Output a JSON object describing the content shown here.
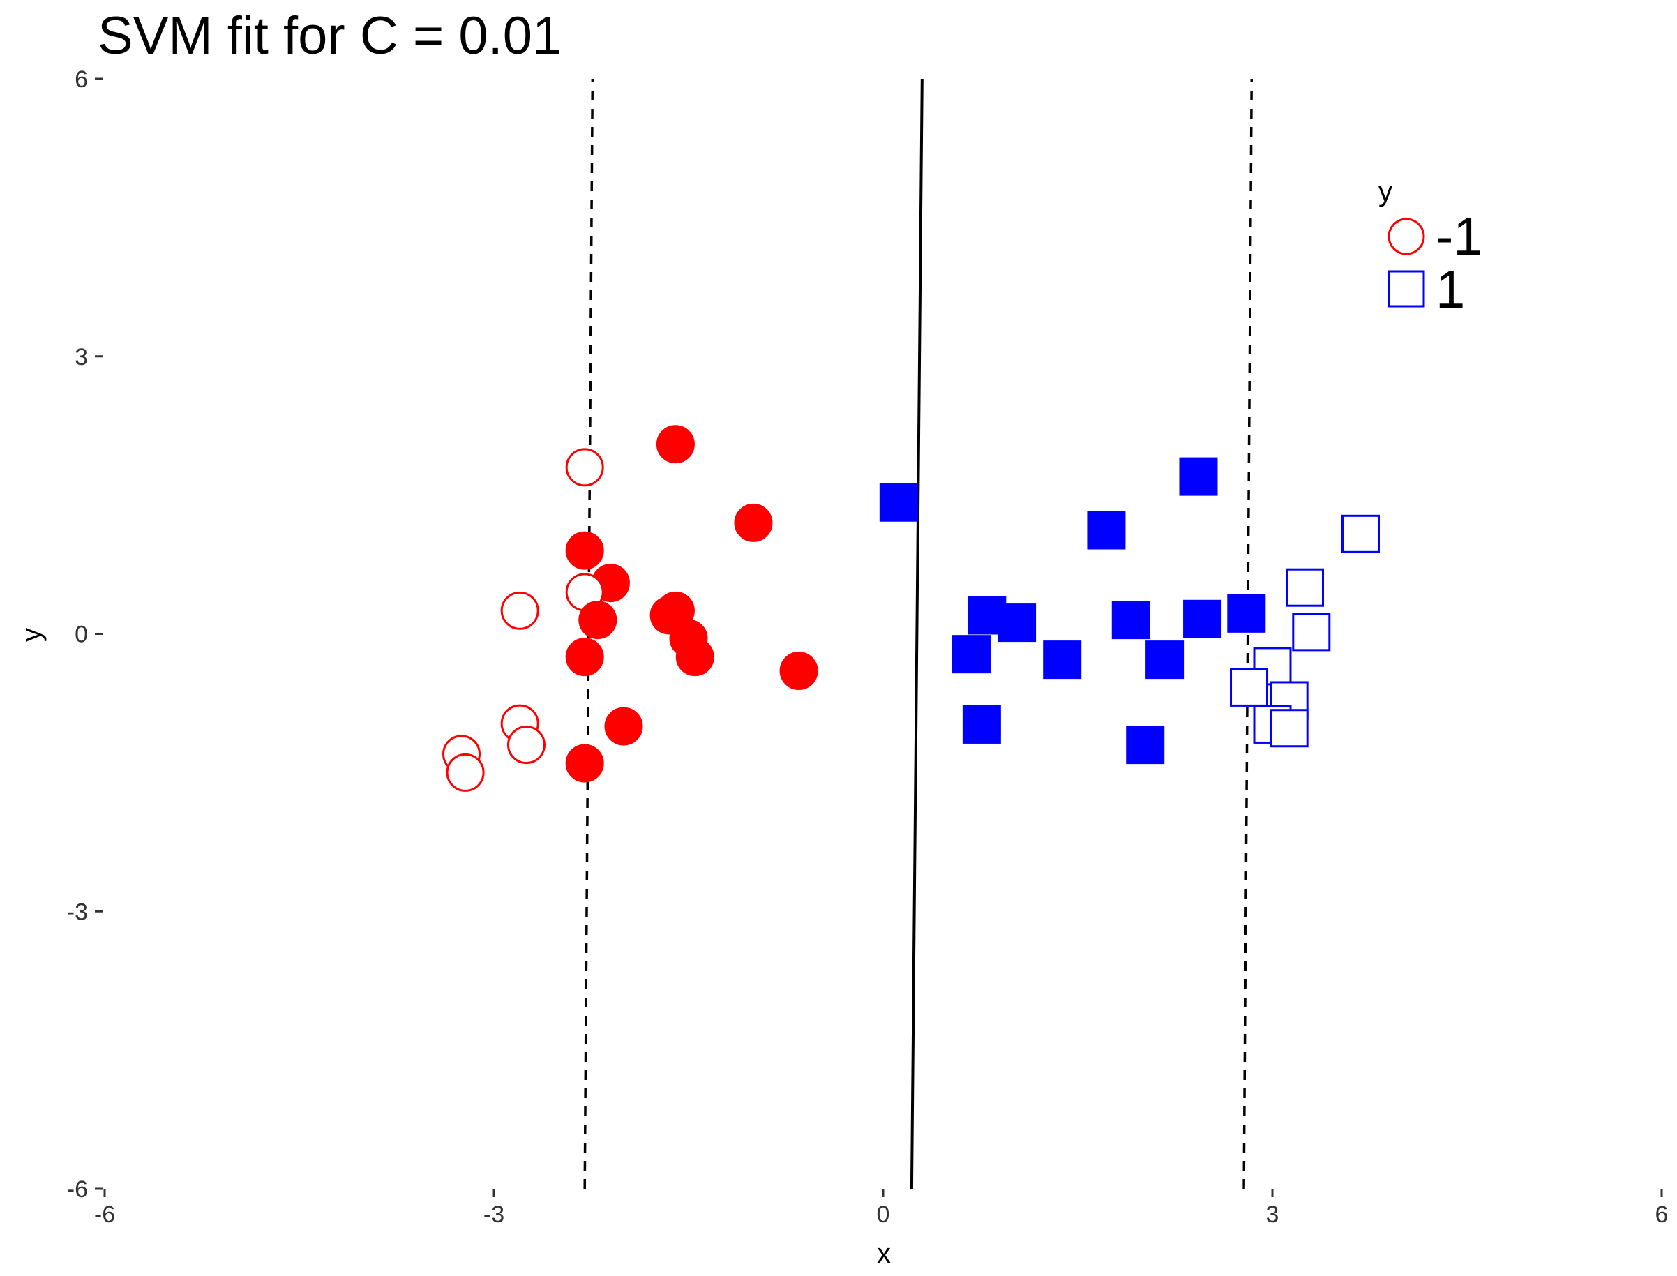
{
  "chart_data": {
    "type": "scatter",
    "title": "SVM fit for C = 0.01",
    "xlabel": "x",
    "ylabel": "y",
    "xlim": [
      -6,
      6
    ],
    "ylim": [
      -6,
      6
    ],
    "x_ticks": [
      "-6",
      "-3",
      "0",
      "3",
      "6"
    ],
    "y_ticks": [
      "-6",
      "-3",
      "0",
      "3",
      "6"
    ],
    "grid": false,
    "legend": {
      "title": "y",
      "position": "top-right",
      "entries": [
        {
          "label": "-1",
          "shape": "circle",
          "color": "#ff0000"
        },
        {
          "label": "1",
          "shape": "square",
          "color": "#0000ff"
        }
      ]
    },
    "series": [
      {
        "name": "-1",
        "shape": "circle",
        "color": "#ff0000",
        "points": [
          {
            "x": -2.3,
            "y": 1.8,
            "filled": false
          },
          {
            "x": -1.6,
            "y": 2.05,
            "filled": true
          },
          {
            "x": -1.0,
            "y": 1.2,
            "filled": true
          },
          {
            "x": -2.3,
            "y": 0.9,
            "filled": true
          },
          {
            "x": -2.1,
            "y": 0.55,
            "filled": true
          },
          {
            "x": -2.3,
            "y": 0.45,
            "filled": false
          },
          {
            "x": -2.8,
            "y": 0.25,
            "filled": false
          },
          {
            "x": -2.2,
            "y": 0.15,
            "filled": true
          },
          {
            "x": -1.6,
            "y": 0.25,
            "filled": true
          },
          {
            "x": -1.65,
            "y": 0.2,
            "filled": true
          },
          {
            "x": -1.5,
            "y": -0.05,
            "filled": true
          },
          {
            "x": -1.45,
            "y": -0.25,
            "filled": true
          },
          {
            "x": -2.3,
            "y": -0.25,
            "filled": true
          },
          {
            "x": -0.65,
            "y": -0.4,
            "filled": true
          },
          {
            "x": -2.0,
            "y": -1.0,
            "filled": true
          },
          {
            "x": -2.8,
            "y": -0.97,
            "filled": false
          },
          {
            "x": -2.75,
            "y": -1.2,
            "filled": false
          },
          {
            "x": -3.25,
            "y": -1.3,
            "filled": false
          },
          {
            "x": -3.22,
            "y": -1.5,
            "filled": false
          },
          {
            "x": -2.3,
            "y": -1.4,
            "filled": true
          }
        ]
      },
      {
        "name": "1",
        "shape": "square",
        "color": "#0000ff",
        "points": [
          {
            "x": 0.12,
            "y": 1.42,
            "filled": true
          },
          {
            "x": 2.43,
            "y": 1.7,
            "filled": true
          },
          {
            "x": 1.72,
            "y": 1.12,
            "filled": true
          },
          {
            "x": 3.68,
            "y": 1.08,
            "filled": false
          },
          {
            "x": 3.25,
            "y": 0.5,
            "filled": false
          },
          {
            "x": 3.3,
            "y": 0.02,
            "filled": false
          },
          {
            "x": 0.8,
            "y": 0.2,
            "filled": true
          },
          {
            "x": 1.03,
            "y": 0.12,
            "filled": true
          },
          {
            "x": 1.91,
            "y": 0.15,
            "filled": true
          },
          {
            "x": 2.46,
            "y": 0.16,
            "filled": true
          },
          {
            "x": 2.8,
            "y": 0.22,
            "filled": true
          },
          {
            "x": 0.68,
            "y": -0.22,
            "filled": true
          },
          {
            "x": 1.38,
            "y": -0.28,
            "filled": true
          },
          {
            "x": 2.17,
            "y": -0.28,
            "filled": true
          },
          {
            "x": 3.0,
            "y": -0.35,
            "filled": false
          },
          {
            "x": 2.82,
            "y": -0.58,
            "filled": false
          },
          {
            "x": 3.13,
            "y": -0.72,
            "filled": false
          },
          {
            "x": 3.0,
            "y": -0.98,
            "filled": false
          },
          {
            "x": 3.13,
            "y": -1.02,
            "filled": false
          },
          {
            "x": 0.76,
            "y": -0.98,
            "filled": true
          },
          {
            "x": 2.02,
            "y": -1.2,
            "filled": true
          }
        ]
      }
    ],
    "lines": [
      {
        "role": "decision-boundary",
        "style": "solid",
        "from": [
          0.22,
          -6
        ],
        "to": [
          0.3,
          6
        ]
      },
      {
        "role": "margin-left",
        "style": "dashed",
        "from": [
          -2.3,
          -6
        ],
        "to": [
          -2.24,
          6
        ]
      },
      {
        "role": "margin-right",
        "style": "dashed",
        "from": [
          2.78,
          -6
        ],
        "to": [
          2.84,
          6
        ]
      }
    ]
  }
}
